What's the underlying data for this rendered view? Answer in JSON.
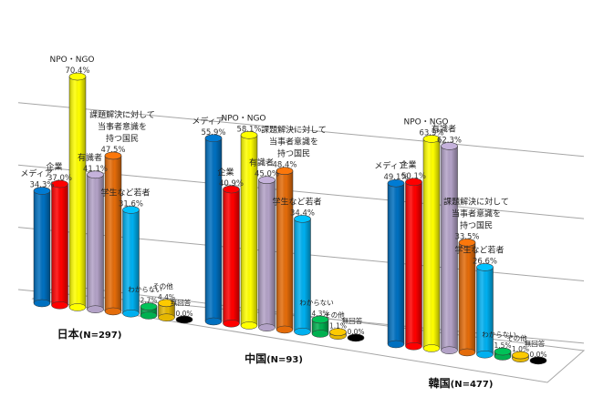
{
  "chart_data": {
    "type": "bar",
    "style": "3d-cylinder",
    "title": "",
    "xlabel": "",
    "ylabel": "",
    "ylim": [
      0,
      80
    ],
    "grid": true,
    "legend": "none (data labels on bars)",
    "series_names": [
      "メディア",
      "企業",
      "NPO・NGO",
      "有識者",
      "課題解決に対して当事者意識を持つ国民",
      "学生など若者",
      "わからない",
      "その他",
      "無回答"
    ],
    "series_colors": [
      "#0070C0",
      "#FF0000",
      "#FFFF00",
      "#B3A2C7",
      "#E46C0A",
      "#00B0F0",
      "#00B050",
      "#E6B800",
      "#000000"
    ],
    "groups": [
      {
        "label": "日本",
        "n": "(N=297)",
        "values": [
          34.3,
          37.0,
          70.4,
          41.1,
          47.5,
          31.6,
          2.7,
          4.4,
          0.0
        ]
      },
      {
        "label": "中国",
        "n": "(N=93)",
        "values": [
          55.9,
          40.9,
          58.1,
          45.0,
          48.4,
          34.4,
          4.3,
          1.1,
          0.0
        ]
      },
      {
        "label": "韓国",
        "n": "(N=477)",
        "values": [
          49.1,
          50.1,
          63.9,
          62.3,
          33.5,
          26.6,
          1.5,
          1.0,
          0.0
        ]
      }
    ],
    "value_labels": [
      [
        "34.3%",
        "37.0%",
        "70.4%",
        "41.1%",
        "47.5%",
        "31.6%",
        "2.7%",
        "4.4%",
        "0.0%"
      ],
      [
        "55.9%",
        "40.9%",
        "58.1%",
        "45.0%",
        "48.4%",
        "34.4%",
        "4.3%",
        "1.1%",
        "0.0%"
      ],
      [
        "49.1%",
        "50.1%",
        "63.9%",
        "62.3%",
        "33.5%",
        "26.6%",
        "1.5%",
        "1.0%",
        "0.0%"
      ]
    ]
  }
}
